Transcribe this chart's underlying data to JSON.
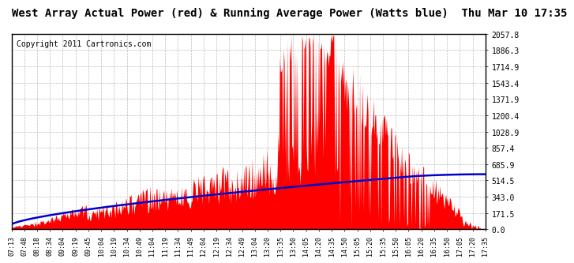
{
  "title": "West Array Actual Power (red) & Running Average Power (Watts blue)  Thu Mar 10 17:35",
  "copyright": "Copyright 2011 Cartronics.com",
  "y_ticks": [
    0.0,
    171.5,
    343.0,
    514.5,
    685.9,
    857.4,
    1028.9,
    1200.4,
    1371.9,
    1543.4,
    1714.9,
    1886.3,
    2057.8
  ],
  "y_max": 2057.8,
  "x_labels": [
    "07:13",
    "07:48",
    "08:18",
    "08:34",
    "09:04",
    "09:19",
    "09:45",
    "10:04",
    "10:19",
    "10:34",
    "10:49",
    "11:04",
    "11:19",
    "11:34",
    "11:49",
    "12:04",
    "12:19",
    "12:34",
    "12:49",
    "13:04",
    "13:20",
    "13:35",
    "13:50",
    "14:05",
    "14:20",
    "14:35",
    "14:50",
    "15:05",
    "15:20",
    "15:35",
    "15:50",
    "16:05",
    "16:20",
    "16:35",
    "16:50",
    "17:05",
    "17:20",
    "17:35"
  ],
  "bg_color": "#ffffff",
  "plot_bg_color": "#ffffff",
  "grid_color": "#bbbbbb",
  "red_color": "#ff0000",
  "blue_color": "#0000cc",
  "title_fontsize": 10,
  "copyright_fontsize": 7
}
